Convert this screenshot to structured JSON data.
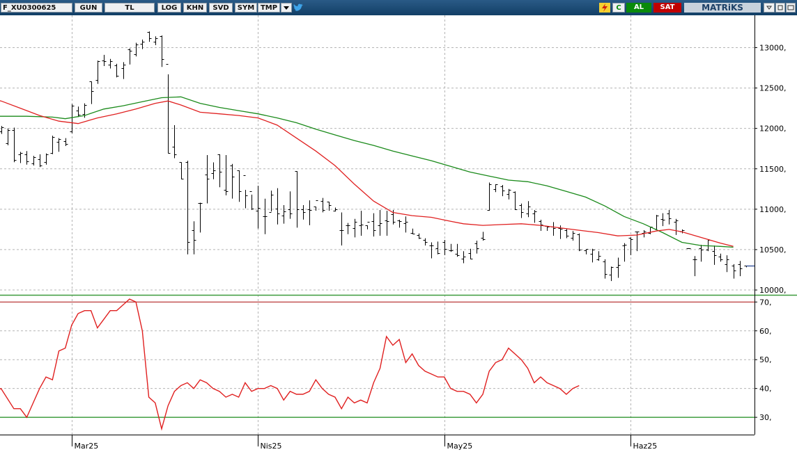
{
  "toolbar": {
    "symbol": "F_XU0300625",
    "period": "GUN",
    "currency": "TL",
    "log": "LOG",
    "khn": "KHN",
    "svd": "SVD",
    "sym": "SYM",
    "tmp": "TMP",
    "flash_icon": "lightning-icon",
    "c": "C",
    "buy": "AL",
    "sell": "SAT",
    "brand": "MATRiKS",
    "colors": {
      "bar": "#1b4f7b",
      "buy": "#0a8a0a",
      "sell": "#c00000",
      "brand": "#c8d2dc"
    }
  },
  "price_axis": {
    "ticks": [
      {
        "value": 13000,
        "label": "13000,"
      },
      {
        "value": 12500,
        "label": "12500,"
      },
      {
        "value": 12000,
        "label": "12000,"
      },
      {
        "value": 11500,
        "label": "11500,"
      },
      {
        "value": 11000,
        "label": "11000,"
      },
      {
        "value": 10500,
        "label": "10500,"
      },
      {
        "value": 10000,
        "label": "10000,"
      }
    ]
  },
  "osc_axis": {
    "ticks": [
      {
        "value": 70,
        "label": "70,"
      },
      {
        "value": 60,
        "label": "60,"
      },
      {
        "value": 50,
        "label": "50,"
      },
      {
        "value": 40,
        "label": "40,"
      },
      {
        "value": 30,
        "label": "30,"
      }
    ]
  },
  "dates": [
    {
      "index": 11,
      "label": "Mar25"
    },
    {
      "index": 40,
      "label": "Nis25"
    },
    {
      "index": 69,
      "label": "May25"
    },
    {
      "index": 98,
      "label": "Haz25"
    }
  ],
  "chart_data": {
    "type": "ohlc",
    "ylim": [
      9940,
      13400
    ],
    "grid": true,
    "levels": [
      70,
      30
    ],
    "osc_ylim": [
      24,
      72
    ],
    "colors": {
      "ma_fast": "#e02020",
      "ma_slow": "#1a8a1a",
      "osc": "#e02020",
      "upper_level": "#b22222",
      "lower_level": "#1a8a1a",
      "last_price": "#1a3a8a"
    },
    "bars": [
      [
        11960,
        12030,
        11940,
        12010
      ],
      [
        11820,
        12000,
        11800,
        11980
      ],
      [
        11980,
        12010,
        11590,
        11610
      ],
      [
        11680,
        11710,
        11580,
        11700
      ],
      [
        11680,
        11720,
        11560,
        11590
      ],
      [
        11570,
        11660,
        11550,
        11640
      ],
      [
        11620,
        11680,
        11530,
        11540
      ],
      [
        11580,
        11690,
        11560,
        11680
      ],
      [
        11700,
        11910,
        11690,
        11890
      ],
      [
        11830,
        11880,
        11720,
        11870
      ],
      [
        11840,
        11880,
        11790,
        11810
      ],
      [
        11960,
        12300,
        11950,
        12280
      ],
      [
        12220,
        12270,
        12150,
        12170
      ],
      [
        12180,
        12310,
        12140,
        12290
      ],
      [
        12580,
        12580,
        12310,
        12460
      ],
      [
        12600,
        12840,
        12560,
        12830
      ],
      [
        12840,
        12910,
        12780,
        12830
      ],
      [
        12790,
        12860,
        12750,
        12830
      ],
      [
        12780,
        12800,
        12640,
        12650
      ],
      [
        12750,
        12820,
        12620,
        12790
      ],
      [
        12980,
        12990,
        12800,
        12960
      ],
      [
        12920,
        13060,
        12900,
        13040
      ],
      [
        13050,
        13100,
        12990,
        13070
      ],
      [
        13190,
        13200,
        13080,
        13120
      ],
      [
        13070,
        13140,
        13040,
        13120
      ],
      [
        13140,
        13150,
        12770,
        12860
      ],
      [
        12800,
        12670,
        11700,
        11700
      ],
      [
        11770,
        12040,
        11640,
        11680
      ],
      [
        11580,
        11580,
        11380,
        11380
      ],
      [
        11580,
        11600,
        10450,
        10590
      ],
      [
        10740,
        10850,
        10450,
        10620
      ],
      [
        11080,
        11080,
        10720,
        11080
      ],
      [
        11430,
        11670,
        11080,
        11380
      ],
      [
        11450,
        11580,
        11380,
        11480
      ],
      [
        11680,
        11680,
        11280,
        11460
      ],
      [
        11240,
        11670,
        11180,
        11220
      ],
      [
        11540,
        11560,
        11140,
        11400
      ],
      [
        11480,
        11480,
        11100,
        11220
      ],
      [
        11420,
        11240,
        11020,
        11170
      ],
      [
        11220,
        11180,
        11000,
        11010
      ],
      [
        10980,
        11290,
        10770,
        11020
      ],
      [
        10910,
        11130,
        10700,
        10910
      ],
      [
        10960,
        11230,
        10980,
        11180
      ],
      [
        11010,
        11260,
        10820,
        10950
      ],
      [
        10920,
        11050,
        10830,
        10970
      ],
      [
        11000,
        11220,
        10890,
        10950
      ],
      [
        11470,
        11470,
        10780,
        11000
      ],
      [
        11000,
        11050,
        10880,
        10960
      ],
      [
        11000,
        11110,
        10810,
        10990
      ],
      [
        11030,
        11030,
        10990,
        11110
      ],
      [
        11100,
        11140,
        10970,
        10990
      ],
      [
        11090,
        11090,
        10990,
        11050
      ],
      [
        10980,
        11020,
        10980,
        11000
      ],
      [
        10740,
        10960,
        10560,
        10740
      ],
      [
        10800,
        10830,
        10700,
        10800
      ],
      [
        10770,
        10880,
        10660,
        10840
      ],
      [
        10800,
        10980,
        10680,
        10810
      ],
      [
        10800,
        10800,
        10760,
        10840
      ],
      [
        10850,
        10950,
        10670,
        10740
      ],
      [
        10800,
        10990,
        10680,
        10830
      ],
      [
        10860,
        10980,
        10680,
        10850
      ],
      [
        10940,
        10990,
        10820,
        10840
      ],
      [
        10860,
        10870,
        10780,
        10850
      ],
      [
        10830,
        10910,
        10720,
        10840
      ],
      [
        10710,
        10760,
        10700,
        10700
      ],
      [
        10680,
        10700,
        10640,
        10650
      ],
      [
        10620,
        10640,
        10560,
        10590
      ],
      [
        10550,
        10590,
        10400,
        10550
      ],
      [
        10520,
        10600,
        10450,
        10460
      ],
      [
        10590,
        10620,
        10440,
        10510
      ],
      [
        10490,
        10570,
        10480,
        10490
      ],
      [
        10450,
        10570,
        10420,
        10430
      ],
      [
        10390,
        10480,
        10340,
        10410
      ],
      [
        10460,
        10510,
        10390,
        10390
      ],
      [
        10580,
        10610,
        10460,
        10520
      ],
      [
        10650,
        10720,
        10620,
        10630
      ],
      [
        10990,
        11330,
        10990,
        11310
      ],
      [
        11250,
        11310,
        11220,
        11310
      ],
      [
        11280,
        11300,
        11170,
        11230
      ],
      [
        11190,
        11250,
        11130,
        11240
      ],
      [
        11210,
        11220,
        11000,
        11000
      ],
      [
        11050,
        11070,
        10900,
        10960
      ],
      [
        10950,
        11100,
        10910,
        11030
      ],
      [
        10950,
        10990,
        10840,
        10970
      ],
      [
        10850,
        10870,
        10740,
        10810
      ],
      [
        10790,
        10790,
        10740,
        10780
      ],
      [
        10780,
        10840,
        10680,
        10770
      ],
      [
        10770,
        10800,
        10640,
        10760
      ],
      [
        10740,
        10760,
        10650,
        10670
      ],
      [
        10650,
        10730,
        10620,
        10710
      ],
      [
        10690,
        10700,
        10490,
        10500
      ],
      [
        10490,
        10500,
        10450,
        10510
      ],
      [
        10450,
        10510,
        10350,
        10500
      ],
      [
        10380,
        10480,
        10370,
        10420
      ],
      [
        10350,
        10380,
        10150,
        10200
      ],
      [
        10190,
        10290,
        10120,
        10280
      ],
      [
        10280,
        10400,
        10160,
        10310
      ],
      [
        10550,
        10580,
        10360,
        10560
      ],
      [
        10650,
        10650,
        10440,
        10630
      ],
      [
        10720,
        10720,
        10490,
        10720
      ],
      [
        10710,
        10740,
        10660,
        10720
      ],
      [
        10710,
        10780,
        10700,
        10780
      ],
      [
        10760,
        10930,
        10760,
        10920
      ],
      [
        10880,
        10950,
        10800,
        10870
      ],
      [
        10950,
        10990,
        10820,
        10890
      ],
      [
        10840,
        10880,
        10690,
        10860
      ],
      [
        10720,
        10750,
        10710,
        10740
      ],
      [
        10520,
        10520,
        10530,
        10520
      ],
      [
        10380,
        10420,
        10180,
        10380
      ],
      [
        10520,
        10560,
        10360,
        10500
      ],
      [
        10500,
        10620,
        10490,
        10620
      ],
      [
        10480,
        10550,
        10320,
        10430
      ],
      [
        10410,
        10450,
        10360,
        10380
      ],
      [
        10320,
        10430,
        10230,
        10380
      ],
      [
        10300,
        10320,
        10150,
        10240
      ],
      [
        10320,
        10360,
        10180,
        10270
      ],
      [
        10300,
        10300,
        10290,
        10300
      ]
    ],
    "ma_fast": [
      [
        -2,
        12370
      ],
      [
        0,
        12340
      ],
      [
        3,
        12250
      ],
      [
        6,
        12160
      ],
      [
        9,
        12090
      ],
      [
        12,
        12060
      ],
      [
        15,
        12130
      ],
      [
        18,
        12180
      ],
      [
        21,
        12240
      ],
      [
        24,
        12310
      ],
      [
        26,
        12340
      ],
      [
        28,
        12290
      ],
      [
        31,
        12200
      ],
      [
        34,
        12180
      ],
      [
        37,
        12160
      ],
      [
        40,
        12130
      ],
      [
        43,
        12040
      ],
      [
        46,
        11880
      ],
      [
        49,
        11720
      ],
      [
        52,
        11540
      ],
      [
        55,
        11310
      ],
      [
        58,
        11100
      ],
      [
        61,
        10960
      ],
      [
        64,
        10920
      ],
      [
        67,
        10900
      ],
      [
        70,
        10850
      ],
      [
        72,
        10820
      ],
      [
        75,
        10800
      ],
      [
        78,
        10810
      ],
      [
        81,
        10820
      ],
      [
        84,
        10800
      ],
      [
        87,
        10770
      ],
      [
        90,
        10740
      ],
      [
        93,
        10710
      ],
      [
        96,
        10670
      ],
      [
        99,
        10680
      ],
      [
        102,
        10730
      ],
      [
        104,
        10750
      ],
      [
        106,
        10720
      ],
      [
        109,
        10650
      ],
      [
        112,
        10580
      ],
      [
        114,
        10540
      ]
    ],
    "ma_slow": [
      [
        -2,
        12150
      ],
      [
        0,
        12150
      ],
      [
        4,
        12150
      ],
      [
        8,
        12140
      ],
      [
        10,
        12120
      ],
      [
        13,
        12160
      ],
      [
        16,
        12240
      ],
      [
        19,
        12280
      ],
      [
        22,
        12330
      ],
      [
        25,
        12380
      ],
      [
        28,
        12390
      ],
      [
        31,
        12310
      ],
      [
        34,
        12260
      ],
      [
        37,
        12220
      ],
      [
        40,
        12180
      ],
      [
        43,
        12130
      ],
      [
        46,
        12070
      ],
      [
        49,
        11990
      ],
      [
        52,
        11920
      ],
      [
        55,
        11850
      ],
      [
        58,
        11790
      ],
      [
        61,
        11720
      ],
      [
        64,
        11660
      ],
      [
        67,
        11600
      ],
      [
        70,
        11530
      ],
      [
        73,
        11460
      ],
      [
        76,
        11410
      ],
      [
        79,
        11360
      ],
      [
        82,
        11340
      ],
      [
        85,
        11290
      ],
      [
        88,
        11220
      ],
      [
        91,
        11150
      ],
      [
        94,
        11040
      ],
      [
        97,
        10910
      ],
      [
        100,
        10820
      ],
      [
        103,
        10710
      ],
      [
        106,
        10590
      ],
      [
        109,
        10550
      ],
      [
        112,
        10540
      ],
      [
        114,
        10530
      ]
    ],
    "oscillator": [
      [
        -1,
        39
      ],
      [
        0,
        40
      ],
      [
        2,
        33
      ],
      [
        3,
        33
      ],
      [
        4,
        30
      ],
      [
        5,
        35
      ],
      [
        6,
        40
      ],
      [
        7,
        44
      ],
      [
        8,
        43
      ],
      [
        9,
        53
      ],
      [
        10,
        54
      ],
      [
        11,
        62
      ],
      [
        12,
        66
      ],
      [
        13,
        67
      ],
      [
        14,
        67
      ],
      [
        15,
        61
      ],
      [
        16,
        64
      ],
      [
        17,
        67
      ],
      [
        18,
        67
      ],
      [
        19,
        69
      ],
      [
        20,
        71
      ],
      [
        21,
        70
      ],
      [
        22,
        60
      ],
      [
        23,
        37
      ],
      [
        24,
        35
      ],
      [
        25,
        26
      ],
      [
        26,
        34
      ],
      [
        27,
        39
      ],
      [
        28,
        41
      ],
      [
        29,
        42
      ],
      [
        30,
        40
      ],
      [
        31,
        43
      ],
      [
        32,
        42
      ],
      [
        33,
        40
      ],
      [
        34,
        39
      ],
      [
        35,
        37
      ],
      [
        36,
        38
      ],
      [
        37,
        37
      ],
      [
        38,
        42
      ],
      [
        39,
        39
      ],
      [
        40,
        40
      ],
      [
        41,
        40
      ],
      [
        42,
        41
      ],
      [
        43,
        40
      ],
      [
        44,
        36
      ],
      [
        45,
        39
      ],
      [
        46,
        38
      ],
      [
        47,
        38
      ],
      [
        48,
        39
      ],
      [
        49,
        43
      ],
      [
        50,
        40
      ],
      [
        51,
        38
      ],
      [
        52,
        37
      ],
      [
        53,
        33
      ],
      [
        54,
        37
      ],
      [
        55,
        35
      ],
      [
        56,
        36
      ],
      [
        57,
        35
      ],
      [
        58,
        42
      ],
      [
        59,
        47
      ],
      [
        60,
        58
      ],
      [
        61,
        55
      ],
      [
        62,
        57
      ],
      [
        63,
        49
      ],
      [
        64,
        52
      ],
      [
        65,
        48
      ],
      [
        66,
        46
      ],
      [
        67,
        45
      ],
      [
        68,
        44
      ],
      [
        69,
        44
      ],
      [
        70,
        40
      ],
      [
        71,
        39
      ],
      [
        72,
        39
      ],
      [
        73,
        38
      ],
      [
        74,
        35
      ],
      [
        75,
        38
      ],
      [
        76,
        46
      ],
      [
        77,
        49
      ],
      [
        78,
        50
      ],
      [
        79,
        54
      ],
      [
        80,
        52
      ],
      [
        81,
        50
      ],
      [
        82,
        47
      ],
      [
        83,
        42
      ],
      [
        84,
        44
      ],
      [
        85,
        42
      ],
      [
        86,
        41
      ],
      [
        87,
        40
      ],
      [
        88,
        38
      ],
      [
        89,
        40
      ],
      [
        90,
        41
      ]
    ],
    "last_price": 10300
  }
}
